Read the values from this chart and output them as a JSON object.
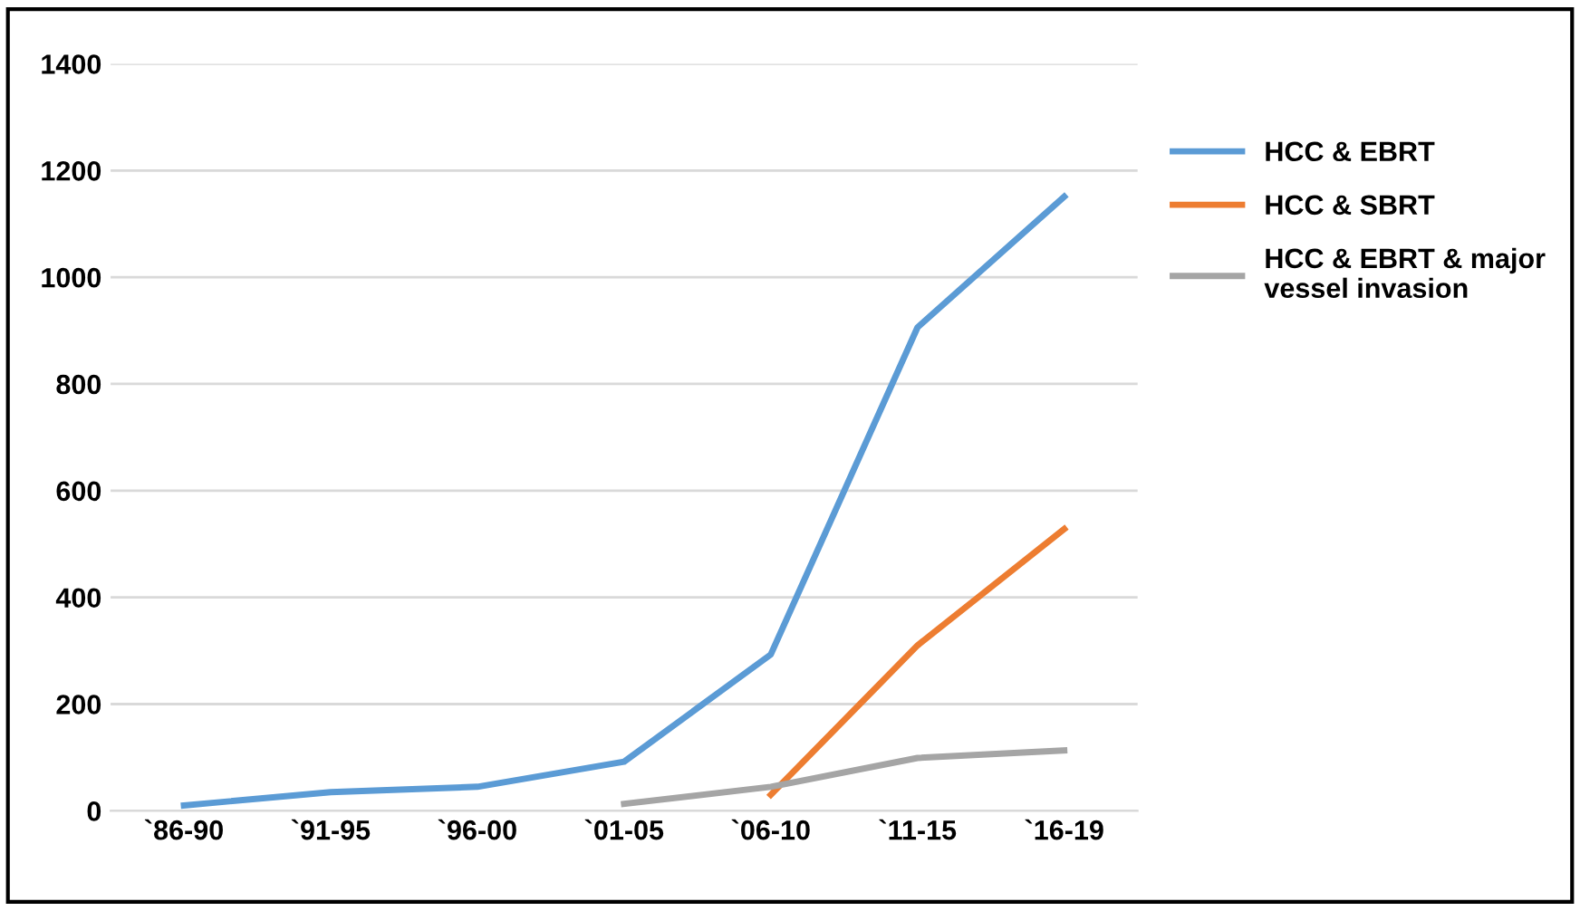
{
  "chart_data": {
    "type": "line",
    "categories": [
      "`86-90",
      "`91-95",
      "`96-00",
      "`01-05",
      "`06-10",
      "`11-15",
      "`16-19"
    ],
    "series": [
      {
        "name": "HCC & EBRT",
        "color": "#5b9bd5",
        "values": [
          10,
          35,
          45,
          92,
          293,
          906,
          1151
        ]
      },
      {
        "name": "HCC & SBRT",
        "color": "#ed7d31",
        "values": [
          null,
          null,
          null,
          null,
          30,
          310,
          528
        ]
      },
      {
        "name": "HCC & EBRT & major vessel invasion",
        "color": "#a5a5a5",
        "values": [
          null,
          null,
          null,
          13,
          45,
          99,
          113
        ]
      }
    ],
    "ylim": [
      0,
      1400
    ],
    "yticks": [
      0,
      200,
      400,
      600,
      800,
      1000,
      1200,
      1400
    ],
    "grid": "y",
    "legend": "right",
    "marker": "none",
    "line_style": "solid"
  }
}
